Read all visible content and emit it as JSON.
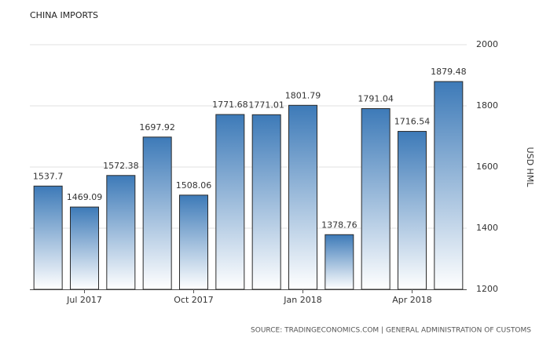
{
  "chart_data": {
    "type": "bar",
    "title": "CHINA IMPORTS",
    "y_axis_label": "USD HML",
    "source": "SOURCE: TRADINGECONOMICS.COM | GENERAL ADMINISTRATION OF CUSTOMS",
    "categories": [
      null,
      "Jul 2017",
      null,
      null,
      "Oct 2017",
      null,
      null,
      "Jan 2018",
      null,
      null,
      "Apr 2018",
      null
    ],
    "values": [
      1537.7,
      1469.09,
      1572.38,
      1697.92,
      1508.06,
      1771.68,
      1771.01,
      1801.79,
      1378.76,
      1791.04,
      1716.54,
      1879.48
    ],
    "color": "#3d7ab8",
    "ylim": [
      1200,
      2000
    ],
    "yticks": [
      1200,
      1400,
      1600,
      1800,
      2000
    ],
    "grid": true,
    "y_axis_side": "right"
  }
}
